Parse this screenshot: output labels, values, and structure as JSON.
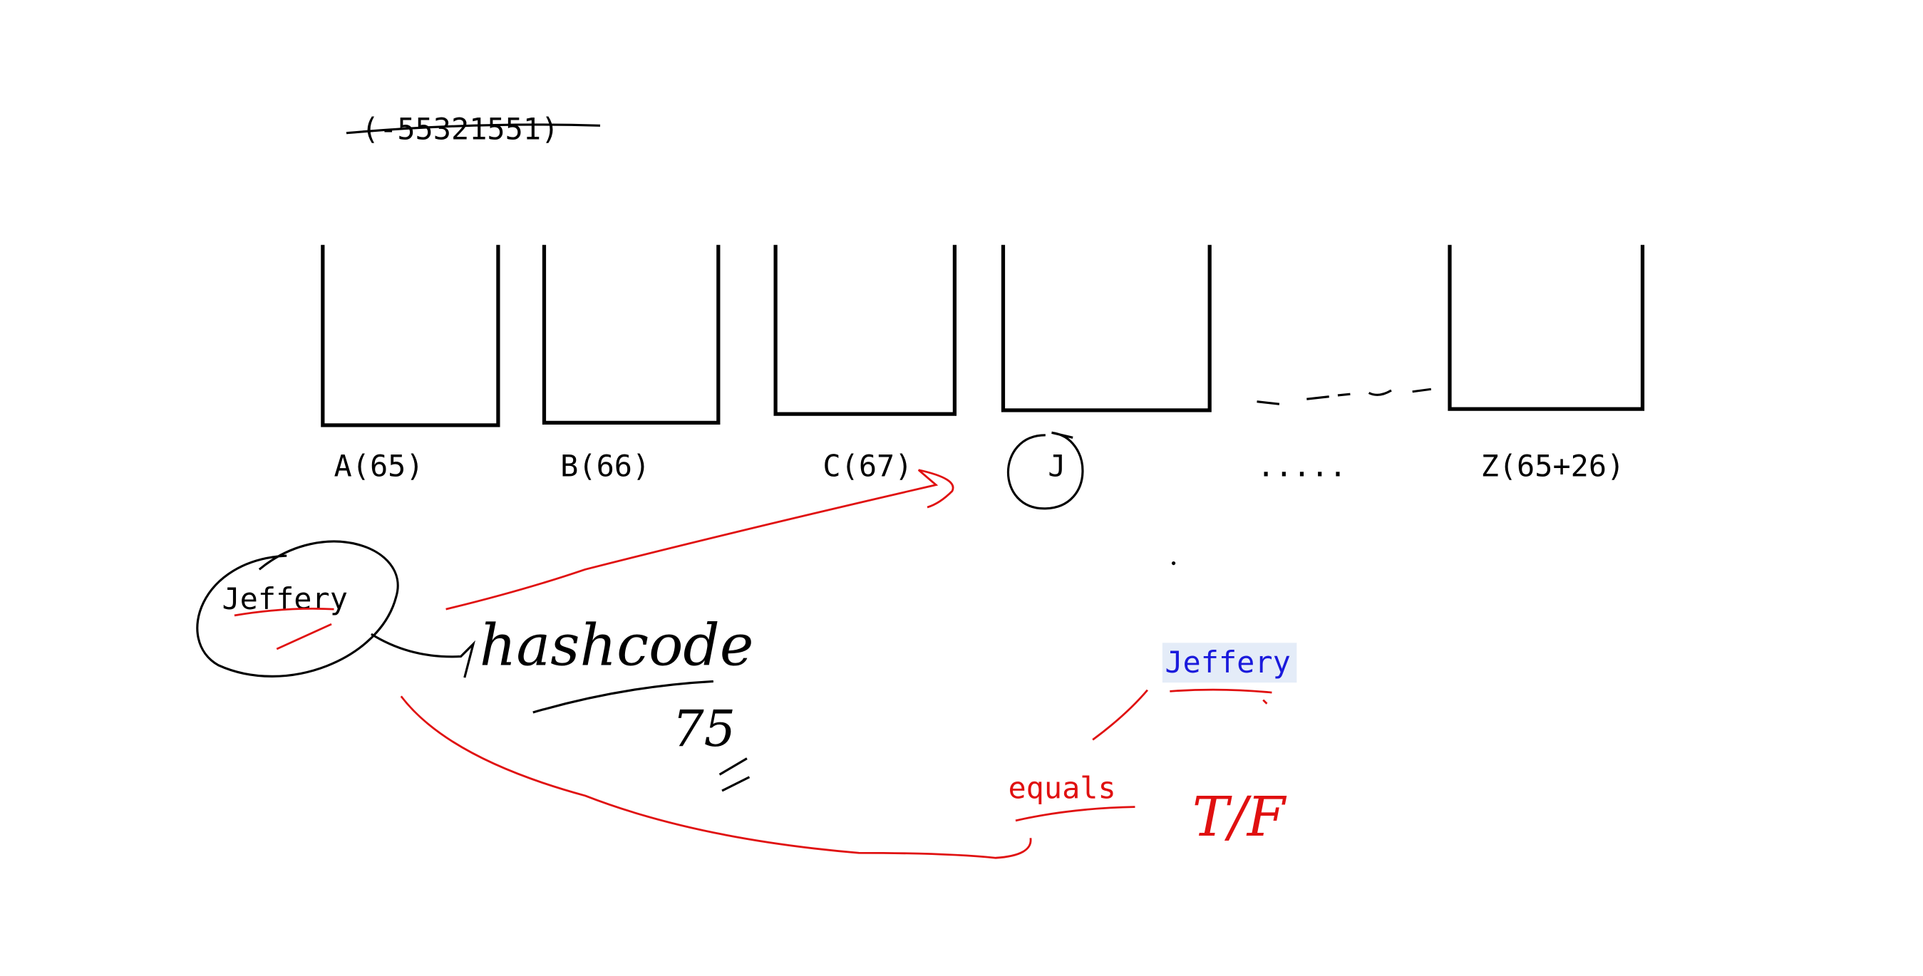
{
  "note_top": "(-55321551)",
  "buckets": [
    "A(65)",
    "B(66)",
    "C(67)",
    "J",
    ".....",
    "Z(65+26)"
  ],
  "key": "Jeffery",
  "hash_label": "hashcode",
  "hash_value": "75",
  "stored_key": "Jeffery",
  "compare_label": "equals",
  "result": "T/F"
}
